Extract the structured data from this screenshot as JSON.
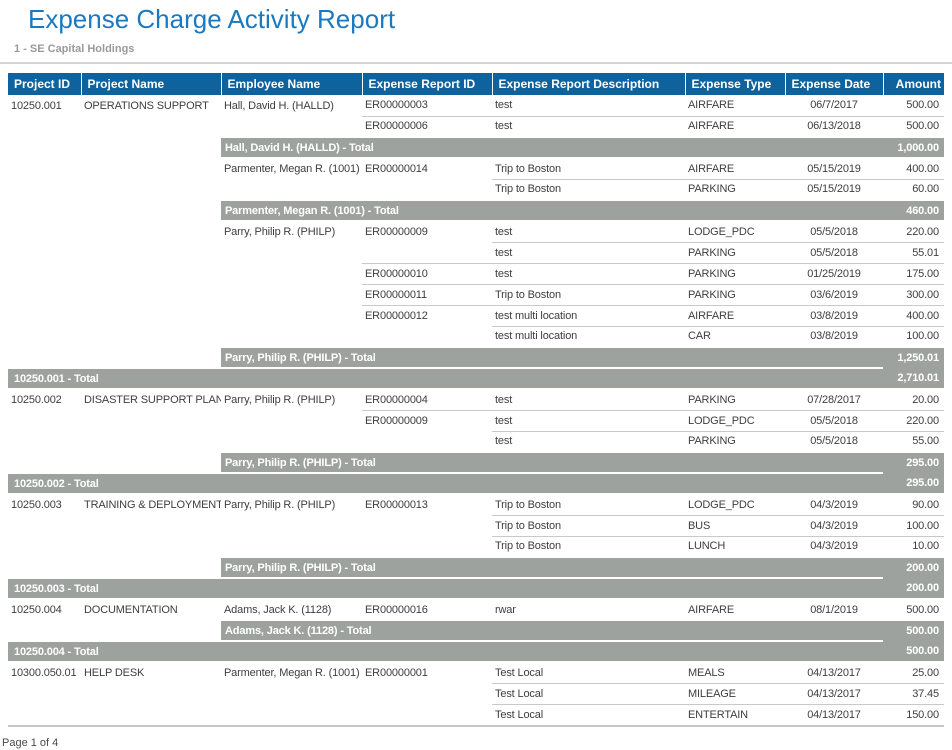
{
  "title": "Expense Charge Activity Report",
  "subtitle": "1 - SE Capital Holdings",
  "footer": "Page 1 of 4",
  "colors": {
    "accent_blue": "#1B79C0",
    "table_header_bg": "#0E639E",
    "total_band_bg": "#9DA29F",
    "row_line": "#C9C9C9"
  },
  "table": {
    "columns": [
      {
        "id": "project-id",
        "label": "Project ID"
      },
      {
        "id": "project-name",
        "label": "Project Name"
      },
      {
        "id": "employee-name",
        "label": "Employee Name"
      },
      {
        "id": "expense-report-id",
        "label": "Expense Report ID"
      },
      {
        "id": "expense-report-description",
        "label": "Expense Report Description"
      },
      {
        "id": "expense-type",
        "label": "Expense Type"
      },
      {
        "id": "expense-date",
        "label": "Expense Date"
      },
      {
        "id": "amount",
        "label": "Amount"
      }
    ],
    "rows": [
      {
        "type": "detail",
        "cells": [
          "10250.001",
          "OPERATIONS SUPPORT",
          "Hall, David H. (HALLD)",
          "ER00000003",
          "test",
          "AIRFARE",
          "06/7/2017",
          "500.00"
        ],
        "border_from": null
      },
      {
        "type": "detail",
        "cells": [
          "",
          "",
          "",
          "ER00000006",
          "test",
          "AIRFARE",
          "06/13/2018",
          "500.00"
        ],
        "border_from": 3
      },
      {
        "type": "emp_total",
        "label": "Hall, David H. (HALLD) - Total",
        "amount": "1,000.00"
      },
      {
        "type": "detail",
        "cells": [
          "",
          "",
          "Parmenter, Megan R. (1001)",
          "ER00000014",
          "Trip to Boston",
          "AIRFARE",
          "05/15/2019",
          "400.00"
        ],
        "border_from": null
      },
      {
        "type": "detail",
        "cells": [
          "",
          "",
          "",
          "",
          "Trip to Boston",
          "PARKING",
          "05/15/2019",
          "60.00"
        ],
        "border_from": 4
      },
      {
        "type": "emp_total",
        "label": "Parmenter, Megan R. (1001) - Total",
        "amount": "460.00"
      },
      {
        "type": "detail",
        "cells": [
          "",
          "",
          "Parry, Philip R. (PHILP)",
          "ER00000009",
          "test",
          "LODGE_PDC",
          "05/5/2018",
          "220.00"
        ],
        "border_from": null
      },
      {
        "type": "detail",
        "cells": [
          "",
          "",
          "",
          "",
          "test",
          "PARKING",
          "05/5/2018",
          "55.01"
        ],
        "border_from": 4
      },
      {
        "type": "detail",
        "cells": [
          "",
          "",
          "",
          "ER00000010",
          "test",
          "PARKING",
          "01/25/2019",
          "175.00"
        ],
        "border_from": 3
      },
      {
        "type": "detail",
        "cells": [
          "",
          "",
          "",
          "ER00000011",
          "Trip to Boston",
          "PARKING",
          "03/6/2019",
          "300.00"
        ],
        "border_from": 3
      },
      {
        "type": "detail",
        "cells": [
          "",
          "",
          "",
          "ER00000012",
          "test multi location",
          "AIRFARE",
          "03/8/2019",
          "400.00"
        ],
        "border_from": 3
      },
      {
        "type": "detail",
        "cells": [
          "",
          "",
          "",
          "",
          "test multi location",
          "CAR",
          "03/8/2019",
          "100.00"
        ],
        "border_from": 4
      },
      {
        "type": "emp_total",
        "label": "Parry, Philip R. (PHILP) - Total",
        "amount": "1,250.01"
      },
      {
        "type": "proj_total",
        "label": "10250.001 - Total",
        "amount": "2,710.01"
      },
      {
        "type": "detail",
        "cells": [
          "10250.002",
          "DISASTER SUPPORT PLAN",
          "Parry, Philip R. (PHILP)",
          "ER00000004",
          "test",
          "PARKING",
          "07/28/2017",
          "20.00"
        ],
        "border_from": null
      },
      {
        "type": "detail",
        "cells": [
          "",
          "",
          "",
          "ER00000009",
          "test",
          "LODGE_PDC",
          "05/5/2018",
          "220.00"
        ],
        "border_from": 3
      },
      {
        "type": "detail",
        "cells": [
          "",
          "",
          "",
          "",
          "test",
          "PARKING",
          "05/5/2018",
          "55.00"
        ],
        "border_from": 4
      },
      {
        "type": "emp_total",
        "label": "Parry, Philip R. (PHILP) - Total",
        "amount": "295.00"
      },
      {
        "type": "proj_total",
        "label": "10250.002 - Total",
        "amount": "295.00"
      },
      {
        "type": "detail",
        "cells": [
          "10250.003",
          "TRAINING & DEPLOYMENT",
          "Parry, Philip R. (PHILP)",
          "ER00000013",
          "Trip to Boston",
          "LODGE_PDC",
          "04/3/2019",
          "90.00"
        ],
        "border_from": null
      },
      {
        "type": "detail",
        "cells": [
          "",
          "",
          "",
          "",
          "Trip to Boston",
          "BUS",
          "04/3/2019",
          "100.00"
        ],
        "border_from": 4
      },
      {
        "type": "detail",
        "cells": [
          "",
          "",
          "",
          "",
          "Trip to Boston",
          "LUNCH",
          "04/3/2019",
          "10.00"
        ],
        "border_from": 4
      },
      {
        "type": "emp_total",
        "label": "Parry, Philip R. (PHILP) - Total",
        "amount": "200.00"
      },
      {
        "type": "proj_total",
        "label": "10250.003 - Total",
        "amount": "200.00"
      },
      {
        "type": "detail",
        "cells": [
          "10250.004",
          "DOCUMENTATION",
          "Adams, Jack K. (1128)",
          "ER00000016",
          "rwar",
          "AIRFARE",
          "08/1/2019",
          "500.00"
        ],
        "border_from": null
      },
      {
        "type": "emp_total",
        "label": "Adams, Jack K. (1128) - Total",
        "amount": "500.00"
      },
      {
        "type": "proj_total",
        "label": "10250.004 - Total",
        "amount": "500.00"
      },
      {
        "type": "detail",
        "cells": [
          "10300.050.01",
          "HELP DESK",
          "Parmenter, Megan R. (1001)",
          "ER00000001",
          "Test Local",
          "MEALS",
          "04/13/2017",
          "25.00"
        ],
        "border_from": null
      },
      {
        "type": "detail",
        "cells": [
          "",
          "",
          "",
          "",
          "Test Local",
          "MILEAGE",
          "04/13/2017",
          "37.45"
        ],
        "border_from": 4
      },
      {
        "type": "detail",
        "cells": [
          "",
          "",
          "",
          "",
          "Test Local",
          "ENTERTAIN",
          "04/13/2017",
          "150.00"
        ],
        "border_from": 4
      }
    ]
  }
}
